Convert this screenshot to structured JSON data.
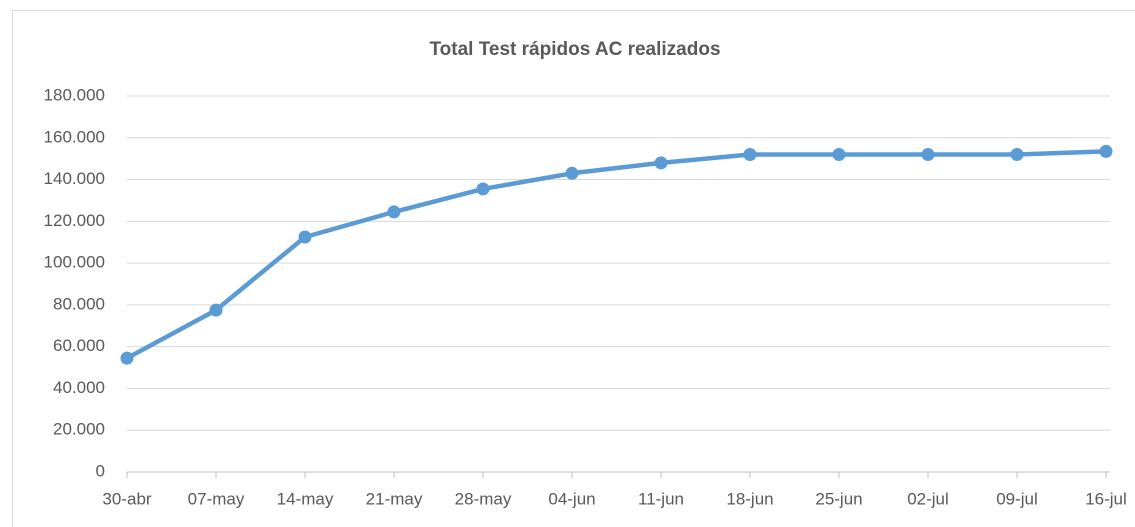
{
  "chart_data": {
    "type": "line",
    "title": "Total Test rápidos AC realizados",
    "categories": [
      "30-abr",
      "07-may",
      "14-may",
      "21-may",
      "28-may",
      "04-jun",
      "11-jun",
      "18-jun",
      "25-jun",
      "02-jul",
      "09-jul",
      "16-jul"
    ],
    "series": [
      {
        "name": "Total Test rápidos AC realizados",
        "color": "#5b9bd5",
        "values": [
          54500,
          77500,
          112500,
          124500,
          135500,
          143000,
          148000,
          152000,
          152000,
          152000,
          152000,
          153500
        ]
      }
    ],
    "ylim": [
      0,
      180000
    ],
    "yticks": [
      0,
      {
        "value": 20000,
        "label": "20.000"
      },
      {
        "value": 40000,
        "label": "40.000"
      },
      {
        "value": 60000,
        "label": "60.000"
      },
      {
        "value": 80000,
        "label": "80.000"
      },
      {
        "value": 100000,
        "label": "100.000"
      },
      {
        "value": 120000,
        "label": "120.000"
      },
      {
        "value": 140000,
        "label": "140.000"
      },
      {
        "value": 160000,
        "label": "160.000"
      },
      {
        "value": 180000,
        "label": "180.000"
      }
    ],
    "grid": true
  }
}
